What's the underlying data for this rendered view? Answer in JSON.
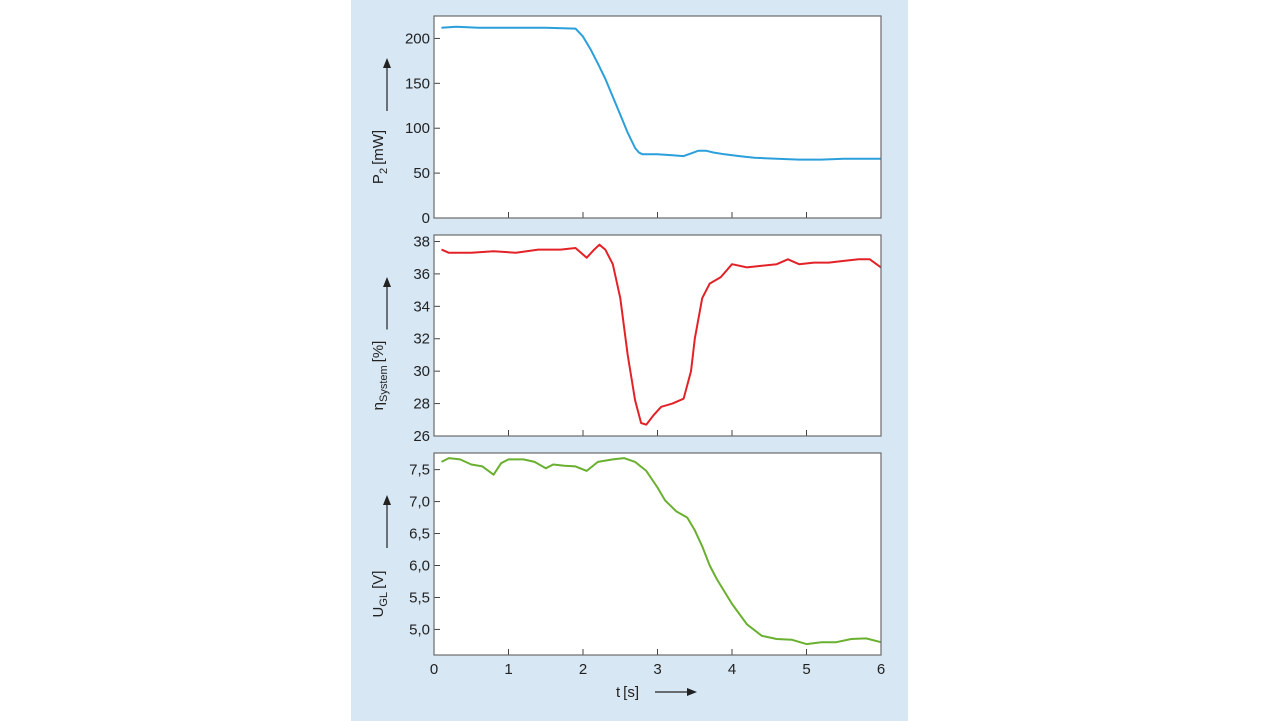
{
  "background": {
    "page": "#ffffff",
    "panel": "#d7e7f4",
    "plot": "#ffffff",
    "frame": "#6a6a6a"
  },
  "x_axis": {
    "label_main": "t",
    "label_unit": "[s]",
    "ticks": [
      0,
      1,
      2,
      3,
      4,
      5,
      6
    ],
    "tick_labels": [
      "0",
      "1",
      "2",
      "3",
      "4",
      "5",
      "6"
    ],
    "xlim": [
      0,
      6
    ]
  },
  "chart_data": [
    {
      "type": "line",
      "ylabel_main": "P",
      "ylabel_sub": "2",
      "ylabel_unit": "[mW]",
      "ylim": [
        0,
        225
      ],
      "yticks": [
        0,
        50,
        100,
        150,
        200
      ],
      "ytick_labels": [
        "0",
        "50",
        "100",
        "150",
        "200"
      ],
      "grid": false,
      "series": [
        {
          "color": "#2b9fdc",
          "x": [
            0.1,
            0.3,
            0.6,
            1.0,
            1.5,
            1.9,
            2.0,
            2.1,
            2.2,
            2.3,
            2.4,
            2.5,
            2.6,
            2.7,
            2.75,
            2.8,
            2.9,
            3.0,
            3.2,
            3.35,
            3.45,
            3.55,
            3.65,
            3.75,
            3.9,
            4.1,
            4.3,
            4.6,
            4.9,
            5.2,
            5.5,
            5.8,
            6.0
          ],
          "y": [
            212,
            213,
            212,
            212,
            212,
            211,
            202,
            188,
            172,
            155,
            135,
            115,
            95,
            78,
            73,
            71,
            71,
            71,
            70,
            69,
            72,
            75,
            75,
            73,
            71,
            69,
            67,
            66,
            65,
            65,
            66,
            66,
            66
          ]
        }
      ]
    },
    {
      "type": "line",
      "ylabel_main": "η",
      "ylabel_sub": "System",
      "ylabel_unit": "[%]",
      "ylim": [
        26,
        38.4
      ],
      "yticks": [
        26,
        28,
        30,
        32,
        34,
        36,
        38
      ],
      "ytick_labels": [
        "26",
        "28",
        "30",
        "32",
        "34",
        "36",
        "38"
      ],
      "grid": false,
      "series": [
        {
          "color": "#e32228",
          "x": [
            0.1,
            0.2,
            0.5,
            0.8,
            1.1,
            1.4,
            1.7,
            1.9,
            2.05,
            2.15,
            2.22,
            2.3,
            2.4,
            2.5,
            2.6,
            2.7,
            2.78,
            2.85,
            2.95,
            3.05,
            3.2,
            3.35,
            3.45,
            3.5,
            3.6,
            3.7,
            3.85,
            4.0,
            4.2,
            4.4,
            4.6,
            4.75,
            4.9,
            5.1,
            5.3,
            5.5,
            5.7,
            5.85,
            6.0
          ],
          "y": [
            37.5,
            37.3,
            37.3,
            37.4,
            37.3,
            37.5,
            37.5,
            37.6,
            37.0,
            37.5,
            37.8,
            37.5,
            36.6,
            34.5,
            31.0,
            28.2,
            26.8,
            26.7,
            27.3,
            27.8,
            28.0,
            28.3,
            30.0,
            32.0,
            34.5,
            35.4,
            35.8,
            36.6,
            36.4,
            36.5,
            36.6,
            36.9,
            36.6,
            36.7,
            36.7,
            36.8,
            36.9,
            36.9,
            36.4
          ]
        }
      ]
    },
    {
      "type": "line",
      "ylabel_main": "U",
      "ylabel_sub": "GL",
      "ylabel_unit": "[V]",
      "ylim": [
        4.6,
        7.76
      ],
      "yticks": [
        5.0,
        5.5,
        6.0,
        6.5,
        7.0,
        7.5
      ],
      "ytick_labels": [
        "5,0",
        "5,5",
        "6,0",
        "6,5",
        "7,0",
        "7,5"
      ],
      "grid": false,
      "series": [
        {
          "color": "#6ab030",
          "x": [
            0.1,
            0.2,
            0.35,
            0.5,
            0.65,
            0.8,
            0.9,
            1.0,
            1.2,
            1.35,
            1.5,
            1.6,
            1.75,
            1.9,
            2.05,
            2.2,
            2.4,
            2.55,
            2.7,
            2.85,
            3.0,
            3.1,
            3.25,
            3.4,
            3.5,
            3.6,
            3.7,
            3.8,
            4.0,
            4.2,
            4.4,
            4.6,
            4.8,
            5.0,
            5.2,
            5.4,
            5.6,
            5.8,
            6.0
          ],
          "y": [
            7.62,
            7.68,
            7.66,
            7.58,
            7.55,
            7.42,
            7.6,
            7.66,
            7.66,
            7.62,
            7.52,
            7.58,
            7.56,
            7.55,
            7.48,
            7.62,
            7.66,
            7.68,
            7.62,
            7.48,
            7.22,
            7.02,
            6.85,
            6.75,
            6.55,
            6.3,
            6.0,
            5.78,
            5.4,
            5.08,
            4.9,
            4.85,
            4.84,
            4.77,
            4.8,
            4.8,
            4.85,
            4.86,
            4.8
          ]
        }
      ]
    }
  ]
}
